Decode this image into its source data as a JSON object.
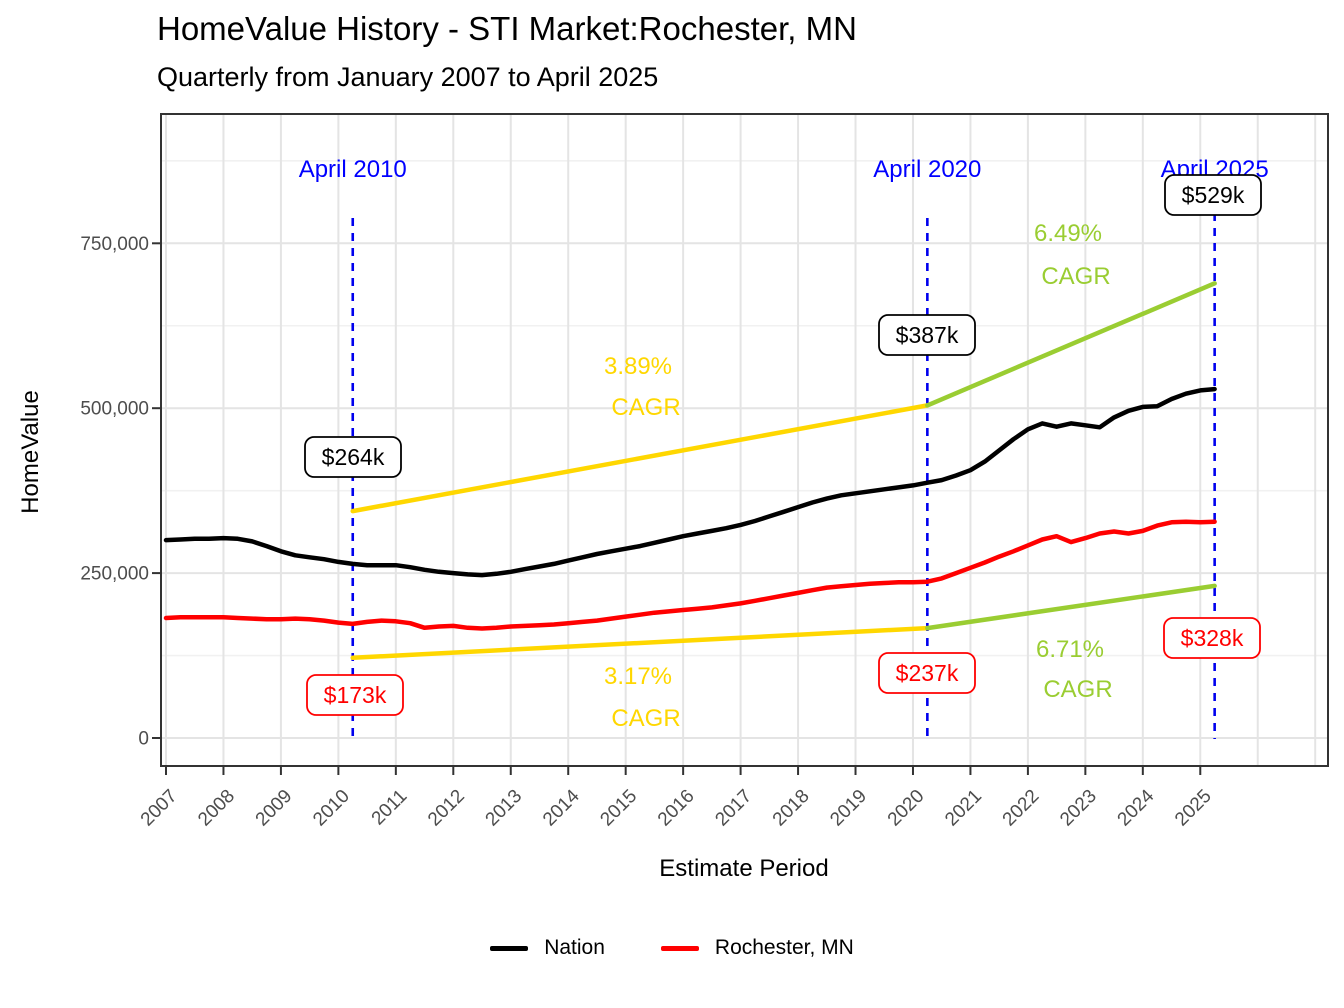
{
  "header": {
    "title": "HomeValue History - STI Market:Rochester, MN",
    "subtitle": "Quarterly from January 2007 to April 2025"
  },
  "axes": {
    "x": {
      "title": "Estimate Period",
      "ticks": [
        "2007",
        "2008",
        "2009",
        "2010",
        "2011",
        "2012",
        "2013",
        "2014",
        "2015",
        "2016",
        "2017",
        "2018",
        "2019",
        "2020",
        "2021",
        "2022",
        "2023",
        "2024",
        "2025"
      ]
    },
    "y": {
      "title": "HomeValue",
      "ticks": [
        "0",
        "250,000",
        "500,000",
        "750,000"
      ]
    }
  },
  "legend": [
    {
      "label": "Nation",
      "color": "#000000"
    },
    {
      "label": "Rochester, MN",
      "color": "#FF0000"
    }
  ],
  "annotations": {
    "milestones": [
      {
        "label": "April 2010",
        "year": 2010.25,
        "nation_value": "$264k",
        "rochester_value": "$173k"
      },
      {
        "label": "April 2020",
        "year": 2020.25,
        "nation_value": "$387k",
        "rochester_value": "$237k"
      },
      {
        "label": "April 2025",
        "year": 2025.25,
        "nation_value": "$529k",
        "rochester_value": "$328k"
      }
    ],
    "cagr": [
      {
        "pct": "3.89%",
        "label": "CAGR",
        "series": "Nation",
        "period": "Apr 2010 - Apr 2020",
        "color": "#FFD700"
      },
      {
        "pct": "6.49%",
        "label": "CAGR",
        "series": "Nation",
        "period": "Apr 2020 - Apr 2025",
        "color": "#9ACD32"
      },
      {
        "pct": "3.17%",
        "label": "CAGR",
        "series": "Rochester, MN",
        "period": "Apr 2010 - Apr 2020",
        "color": "#FFD700"
      },
      {
        "pct": "6.71%",
        "label": "CAGR",
        "series": "Rochester, MN",
        "period": "Apr 2020 - Apr 2025",
        "color": "#9ACD32"
      }
    ]
  },
  "colors": {
    "nation": "#000000",
    "rochester": "#FF0000",
    "milestone_text": "#0000FF",
    "milestone_line": "#0000EE",
    "cagr_first": "#FFD700",
    "cagr_second": "#9ACD32",
    "grid_major": "#E4E4E4",
    "grid_minor": "#F1F1F1",
    "panel_border": "#333333",
    "tick_label": "#4D4D4D"
  },
  "chart_data": {
    "type": "line",
    "title": "HomeValue History - STI Market:Rochester, MN",
    "subtitle": "Quarterly from January 2007 to April 2025",
    "xlabel": "Estimate Period",
    "ylabel": "HomeValue",
    "x_start": 2007.0,
    "x_step": 0.25,
    "x_ticks": [
      2007,
      2008,
      2009,
      2010,
      2011,
      2012,
      2013,
      2014,
      2015,
      2016,
      2017,
      2018,
      2019,
      2020,
      2021,
      2022,
      2023,
      2024,
      2025
    ],
    "y_ticks_k": [
      0,
      250,
      500,
      750
    ],
    "ylim_k": [
      0,
      946
    ],
    "grid": true,
    "legend_position": "bottom",
    "series": [
      {
        "name": "Nation",
        "color": "#000000",
        "values_k": [
          300,
          301,
          302,
          302,
          303,
          302,
          298,
          291,
          283,
          277,
          274,
          271,
          267,
          264,
          262,
          262,
          262,
          259,
          255,
          252,
          250,
          248,
          247,
          249,
          252,
          256,
          260,
          264,
          269,
          274,
          279,
          283,
          287,
          291,
          296,
          301,
          306,
          310,
          314,
          318,
          323,
          329,
          336,
          343,
          350,
          357,
          363,
          368,
          371,
          374,
          377,
          380,
          383,
          387,
          391,
          398,
          406,
          419,
          436,
          453,
          468,
          477,
          472,
          477,
          474,
          471,
          486,
          496,
          502,
          503,
          514,
          522,
          527,
          529
        ]
      },
      {
        "name": "Rochester, MN",
        "color": "#FF0000",
        "values_k": [
          182,
          183,
          183,
          183,
          183,
          182,
          181,
          180,
          180,
          181,
          180,
          178,
          175,
          173,
          176,
          178,
          177,
          174,
          167,
          169,
          170,
          167,
          166,
          167,
          169,
          170,
          171,
          172,
          174,
          176,
          178,
          181,
          184,
          187,
          190,
          192,
          194,
          196,
          198,
          201,
          204,
          208,
          212,
          216,
          220,
          224,
          228,
          230,
          232,
          234,
          235,
          236,
          236,
          237,
          242,
          250,
          258,
          266,
          275,
          283,
          292,
          301,
          306,
          297,
          303,
          310,
          313,
          310,
          314,
          322,
          327,
          328,
          327,
          328
        ]
      }
    ],
    "milestone_years": [
      2010.25,
      2020.25,
      2025.25
    ],
    "milestone_values_k": {
      "nation": [
        264,
        387,
        529
      ],
      "rochester": [
        173,
        237,
        328
      ]
    },
    "cagr_segments": [
      {
        "series": "Nation",
        "from_year": 2010.25,
        "to_year": 2020.25,
        "from_k": 264,
        "to_k": 387,
        "cagr": "3.89%",
        "color": "#FFD700"
      },
      {
        "series": "Nation",
        "from_year": 2020.25,
        "to_year": 2025.25,
        "from_k": 387,
        "to_k": 529,
        "cagr": "6.49%",
        "color": "#9ACD32"
      },
      {
        "series": "Rochester, MN",
        "from_year": 2010.25,
        "to_year": 2020.25,
        "from_k": 173,
        "to_k": 237,
        "cagr": "3.17%",
        "color": "#FFD700"
      },
      {
        "series": "Rochester, MN",
        "from_year": 2020.25,
        "to_year": 2025.25,
        "from_k": 237,
        "to_k": 328,
        "cagr": "6.71%",
        "color": "#9ACD32"
      }
    ]
  }
}
